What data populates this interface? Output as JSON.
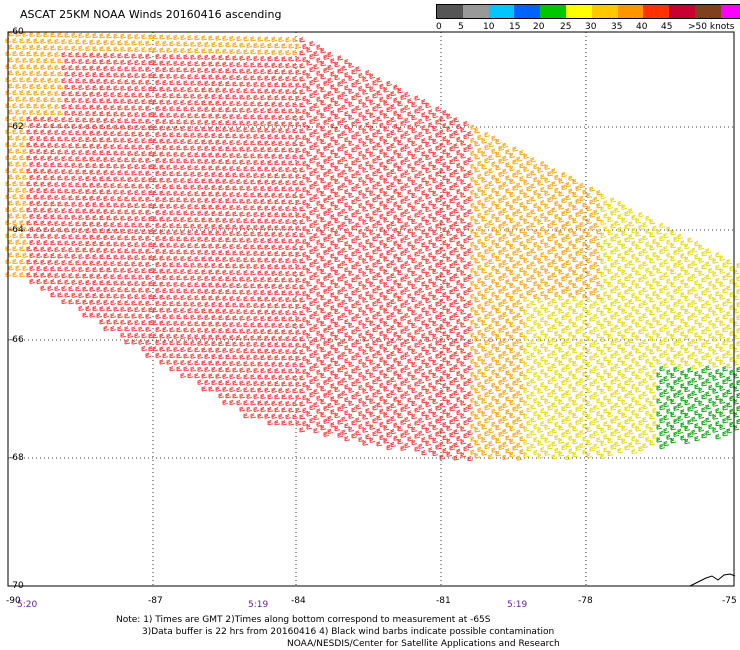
{
  "title": "ASCAT 25KM NOAA Winds 20160416 ascending",
  "legend": {
    "colors": [
      "#555555",
      "#999999",
      "#00c8ff",
      "#0064ff",
      "#00c800",
      "#ffff00",
      "#ffc800",
      "#ff9600",
      "#ff3200",
      "#c80032",
      "#804020",
      "#ff00ff",
      "#9600c8"
    ],
    "labels": [
      "0",
      "5",
      "10",
      "15",
      "20",
      "25",
      "30",
      "35",
      "40",
      "45",
      ">50 knots"
    ]
  },
  "latitude_labels": [
    "-60",
    "-62",
    "-64",
    "-66",
    "-68",
    "-70"
  ],
  "longitude_labels": [
    "-90",
    "-87",
    "-84",
    "-81",
    "-78",
    "-75"
  ],
  "time_labels": [
    "5:20",
    "5:19",
    "5:19"
  ],
  "notes": [
    "Note: 1) Times are GMT 2)Times along bottom correspond to measurement at -65S",
    "3)Data buffer is 22 hrs from 20160416 4) Black wind barbs indicate possible contamination",
    "NOAA/NESDIS/Center for Satellite Applications and Research"
  ],
  "map": {
    "lon_range": [
      -90,
      -75
    ],
    "lat_range": [
      -70,
      -60
    ],
    "grid": true,
    "wind_speed_zones": [
      {
        "region": "northwest swath edge",
        "knots": "25-30",
        "color": "#ffa000"
      },
      {
        "region": "swath interior",
        "knots": "30-40",
        "color": "#ff3232"
      },
      {
        "region": "southeast swath",
        "knots": "20-25",
        "color": "#e6d800"
      },
      {
        "region": "far southeast corner",
        "knots": "15-20",
        "color": "#00a000"
      }
    ]
  }
}
